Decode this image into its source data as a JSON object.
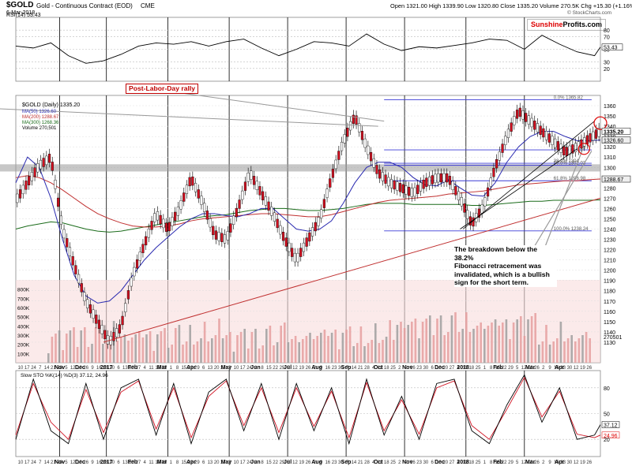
{
  "header": {
    "symbol": "$GOLD",
    "name": "Gold - Continuous Contract (EOD)",
    "exchange": "CME",
    "date": "6-Mar-2018",
    "ohlc": "Open 1321.00  High 1339.90  Low 1320.80  Close 1335.20  Volume 270.5K  Chg +15.30 (+1.16%)",
    "credit": "© StockCharts.com",
    "logo_part1": "Sunshine",
    "logo_part2": "Profits.com"
  },
  "legend": {
    "main": "$GOLD (Daily) 1335.20",
    "ma50": "MA(50) 1326.60",
    "ma200": "MA(200) 1288.67",
    "ma300": "MA(300) 1268.36",
    "volume": "Volume 270,501",
    "rsi": "RSI(14) 53.43",
    "sto": "Slow STO %K(14) %D(3) 37.12, 24.96"
  },
  "annotations": {
    "post_labor_day": "Post-Labor-Day rally",
    "note": "The breakdown below the 38.2%\nFibonacci retracement was\ninvalidated, which is a bullish\nsign for the short term."
  },
  "chart_data": [
    {
      "type": "line",
      "title": "RSI(14)",
      "ylim": [
        0,
        100
      ],
      "ticks": [
        "80",
        "70",
        "50",
        "30",
        "20"
      ],
      "tick_values": [
        80,
        70,
        50,
        30,
        20
      ],
      "last_label": "53.43",
      "last_value": 53.43,
      "x": [
        0,
        3,
        6,
        9,
        12,
        15,
        18,
        21,
        24,
        27,
        30,
        33,
        36,
        39,
        42,
        45,
        48,
        51,
        54,
        57,
        60,
        63,
        66,
        69,
        72,
        75,
        78,
        81,
        84,
        87,
        90,
        93,
        96,
        99,
        100
      ],
      "values": [
        55,
        52,
        60,
        40,
        28,
        32,
        42,
        55,
        60,
        58,
        62,
        55,
        62,
        66,
        52,
        40,
        50,
        62,
        60,
        55,
        74,
        58,
        48,
        54,
        52,
        56,
        60,
        66,
        64,
        50,
        72,
        58,
        46,
        40,
        53.43
      ]
    },
    {
      "type": "line",
      "title": "$GOLD (Daily)",
      "ylim": [
        1110,
        1370
      ],
      "ticks": [
        "1360",
        "1350",
        "1340",
        "1330",
        "1320",
        "1310",
        "1300",
        "1290",
        "1280",
        "1270",
        "1260",
        "1250",
        "1240",
        "1230",
        "1220",
        "1210",
        "1200",
        "1190",
        "1180",
        "1170",
        "1160",
        "1150",
        "1140",
        "1130"
      ],
      "tick_values": [
        1360,
        1350,
        1340,
        1330,
        1320,
        1310,
        1300,
        1290,
        1280,
        1270,
        1260,
        1250,
        1240,
        1230,
        1220,
        1210,
        1200,
        1190,
        1180,
        1170,
        1160,
        1150,
        1140,
        1130
      ],
      "price_labels": [
        "1335.20",
        "1326.60",
        "1288.67"
      ],
      "price_label_values": [
        1335.2,
        1326.6,
        1288.67
      ],
      "x": [
        0,
        2,
        4,
        6,
        8,
        10,
        12,
        14,
        16,
        18,
        20,
        22,
        24,
        26,
        28,
        30,
        32,
        34,
        36,
        38,
        40,
        42,
        44,
        46,
        48,
        50,
        52,
        54,
        56,
        58,
        60,
        62,
        64,
        66,
        68,
        70,
        72,
        74,
        76,
        78,
        80,
        82,
        84,
        86,
        88,
        90,
        92,
        94,
        96,
        98,
        100
      ],
      "close": [
        1268,
        1285,
        1302,
        1310,
        1240,
        1205,
        1170,
        1150,
        1130,
        1145,
        1195,
        1225,
        1255,
        1240,
        1260,
        1290,
        1265,
        1235,
        1230,
        1260,
        1295,
        1275,
        1255,
        1230,
        1210,
        1230,
        1250,
        1290,
        1325,
        1350,
        1320,
        1295,
        1285,
        1280,
        1275,
        1285,
        1290,
        1290,
        1270,
        1245,
        1262,
        1300,
        1330,
        1355,
        1345,
        1335,
        1325,
        1315,
        1320,
        1328,
        1335.2
      ],
      "ma50": [
        1285,
        1310,
        1300,
        1270,
        1230,
        1195,
        1175,
        1168,
        1170,
        1180,
        1195,
        1210,
        1222,
        1232,
        1242,
        1250,
        1255,
        1255,
        1253,
        1252,
        1255,
        1260,
        1260,
        1250,
        1240,
        1238,
        1240,
        1248,
        1265,
        1285,
        1300,
        1305,
        1305,
        1300,
        1290,
        1283,
        1282,
        1288,
        1280,
        1273,
        1272,
        1285,
        1305,
        1320,
        1330,
        1335,
        1335,
        1330,
        1326,
        1326,
        1326.6
      ],
      "ma200": [
        1290,
        1292,
        1290,
        1285,
        1278,
        1270,
        1262,
        1255,
        1250,
        1246,
        1243,
        1242,
        1242,
        1243,
        1245,
        1248,
        1250,
        1251,
        1252,
        1253,
        1254,
        1255,
        1255,
        1254,
        1253,
        1252,
        1252,
        1254,
        1257,
        1260,
        1263,
        1266,
        1268,
        1269,
        1270,
        1271,
        1272,
        1274,
        1275,
        1276,
        1277,
        1279,
        1281,
        1283,
        1284,
        1285,
        1286,
        1287,
        1287,
        1288,
        1288.67
      ],
      "ma300": [
        1240,
        1243,
        1245,
        1247,
        1246,
        1243,
        1240,
        1238,
        1237,
        1238,
        1240,
        1242,
        1244,
        1246,
        1248,
        1250,
        1252,
        1253,
        1254,
        1256,
        1258,
        1259,
        1260,
        1260,
        1259,
        1258,
        1258,
        1259,
        1260,
        1262,
        1264,
        1265,
        1265,
        1265,
        1264,
        1264,
        1264,
        1264,
        1264,
        1263,
        1263,
        1264,
        1265,
        1266,
        1267,
        1267,
        1268,
        1268,
        1268,
        1268,
        1268.36
      ],
      "fibonacci": [
        {
          "label": "0.0% 1365.82",
          "value": 1365.82
        },
        {
          "label": "23.6% 1317.00",
          "value": 1317.0
        },
        {
          "label": "38.2% 1304",
          "value": 1304.0
        },
        {
          "label": "50.0% 1302.03",
          "value": 1302.03
        },
        {
          "label": "61.8% 1286.98",
          "value": 1286.98
        },
        {
          "label": "100.0% 1238.24",
          "value": 1238.24
        }
      ],
      "volume_ticks": [
        "800K",
        "700K",
        "600K",
        "500K",
        "400K",
        "300K",
        "200K",
        "100K"
      ],
      "volume_tick_values": [
        800,
        700,
        600,
        500,
        400,
        300,
        200,
        100
      ],
      "volume_label": "270501",
      "volume_last": 270.5
    },
    {
      "type": "line",
      "title": "Slow STO %K(14) %D(3)",
      "ylim": [
        0,
        100
      ],
      "ticks": [
        "80",
        "50",
        "37.12",
        "24.96",
        "20"
      ],
      "tick_values": [
        80,
        50,
        37.12,
        24.96,
        20
      ],
      "x": [
        0,
        3,
        6,
        9,
        12,
        15,
        18,
        21,
        24,
        27,
        30,
        33,
        36,
        39,
        42,
        45,
        48,
        51,
        54,
        57,
        60,
        63,
        66,
        69,
        72,
        75,
        78,
        81,
        84,
        87,
        90,
        93,
        96,
        99,
        100
      ],
      "k": [
        20,
        90,
        30,
        15,
        85,
        20,
        80,
        90,
        25,
        85,
        15,
        75,
        90,
        30,
        85,
        20,
        85,
        30,
        80,
        15,
        90,
        25,
        70,
        20,
        85,
        90,
        30,
        15,
        60,
        95,
        40,
        80,
        20,
        25,
        37.12
      ],
      "d": [
        25,
        85,
        40,
        20,
        78,
        28,
        75,
        88,
        32,
        80,
        22,
        70,
        88,
        36,
        80,
        28,
        80,
        35,
        76,
        22,
        86,
        30,
        66,
        26,
        80,
        88,
        36,
        20,
        55,
        92,
        46,
        76,
        26,
        22,
        24.96
      ]
    }
  ],
  "x_axis": {
    "months": [
      "Nov",
      "Dec",
      "2017",
      "Feb",
      "Mar",
      "Apr",
      "May",
      "Jun",
      "Jul",
      "Aug",
      "Sep",
      "Oct",
      "Nov",
      "Dec",
      "2018",
      "Feb",
      "Mar",
      "Apr"
    ],
    "month_pos": [
      7.5,
      11.0,
      15.5,
      20.0,
      25.0,
      30.0,
      36.0,
      41.0,
      46.5,
      51.5,
      56.5,
      62.0,
      67.0,
      72.5,
      76.5,
      82.5,
      88.0,
      93.0
    ],
    "days": [
      "10",
      "17",
      "24",
      "7",
      "14",
      "21",
      "28",
      "5",
      "12",
      "19",
      "26",
      "9",
      "16",
      "23",
      "30",
      "6",
      "13",
      "20",
      "27",
      "4",
      "11",
      "18",
      "25",
      "1",
      "8",
      "15",
      "22",
      "29",
      "6",
      "13",
      "20",
      "27",
      "3",
      "10",
      "17",
      "24",
      "1",
      "8",
      "15",
      "22",
      "29",
      "5",
      "12",
      "19",
      "26",
      "2",
      "9",
      "16",
      "23",
      "30",
      "7",
      "14",
      "21",
      "28",
      "4",
      "11",
      "18",
      "25",
      "2",
      "9",
      "16",
      "23",
      "30",
      "6",
      "13",
      "20",
      "27",
      "4",
      "11",
      "18",
      "25",
      "1",
      "8",
      "15",
      "22",
      "29",
      "5",
      "12",
      "19",
      "26",
      "2",
      "9",
      "16",
      "23",
      "30",
      "12",
      "19",
      "26"
    ],
    "month_lines": [
      7.5,
      15.5,
      26.0,
      36.5,
      46.5,
      56.5,
      66.5,
      77.0,
      87.0
    ]
  }
}
